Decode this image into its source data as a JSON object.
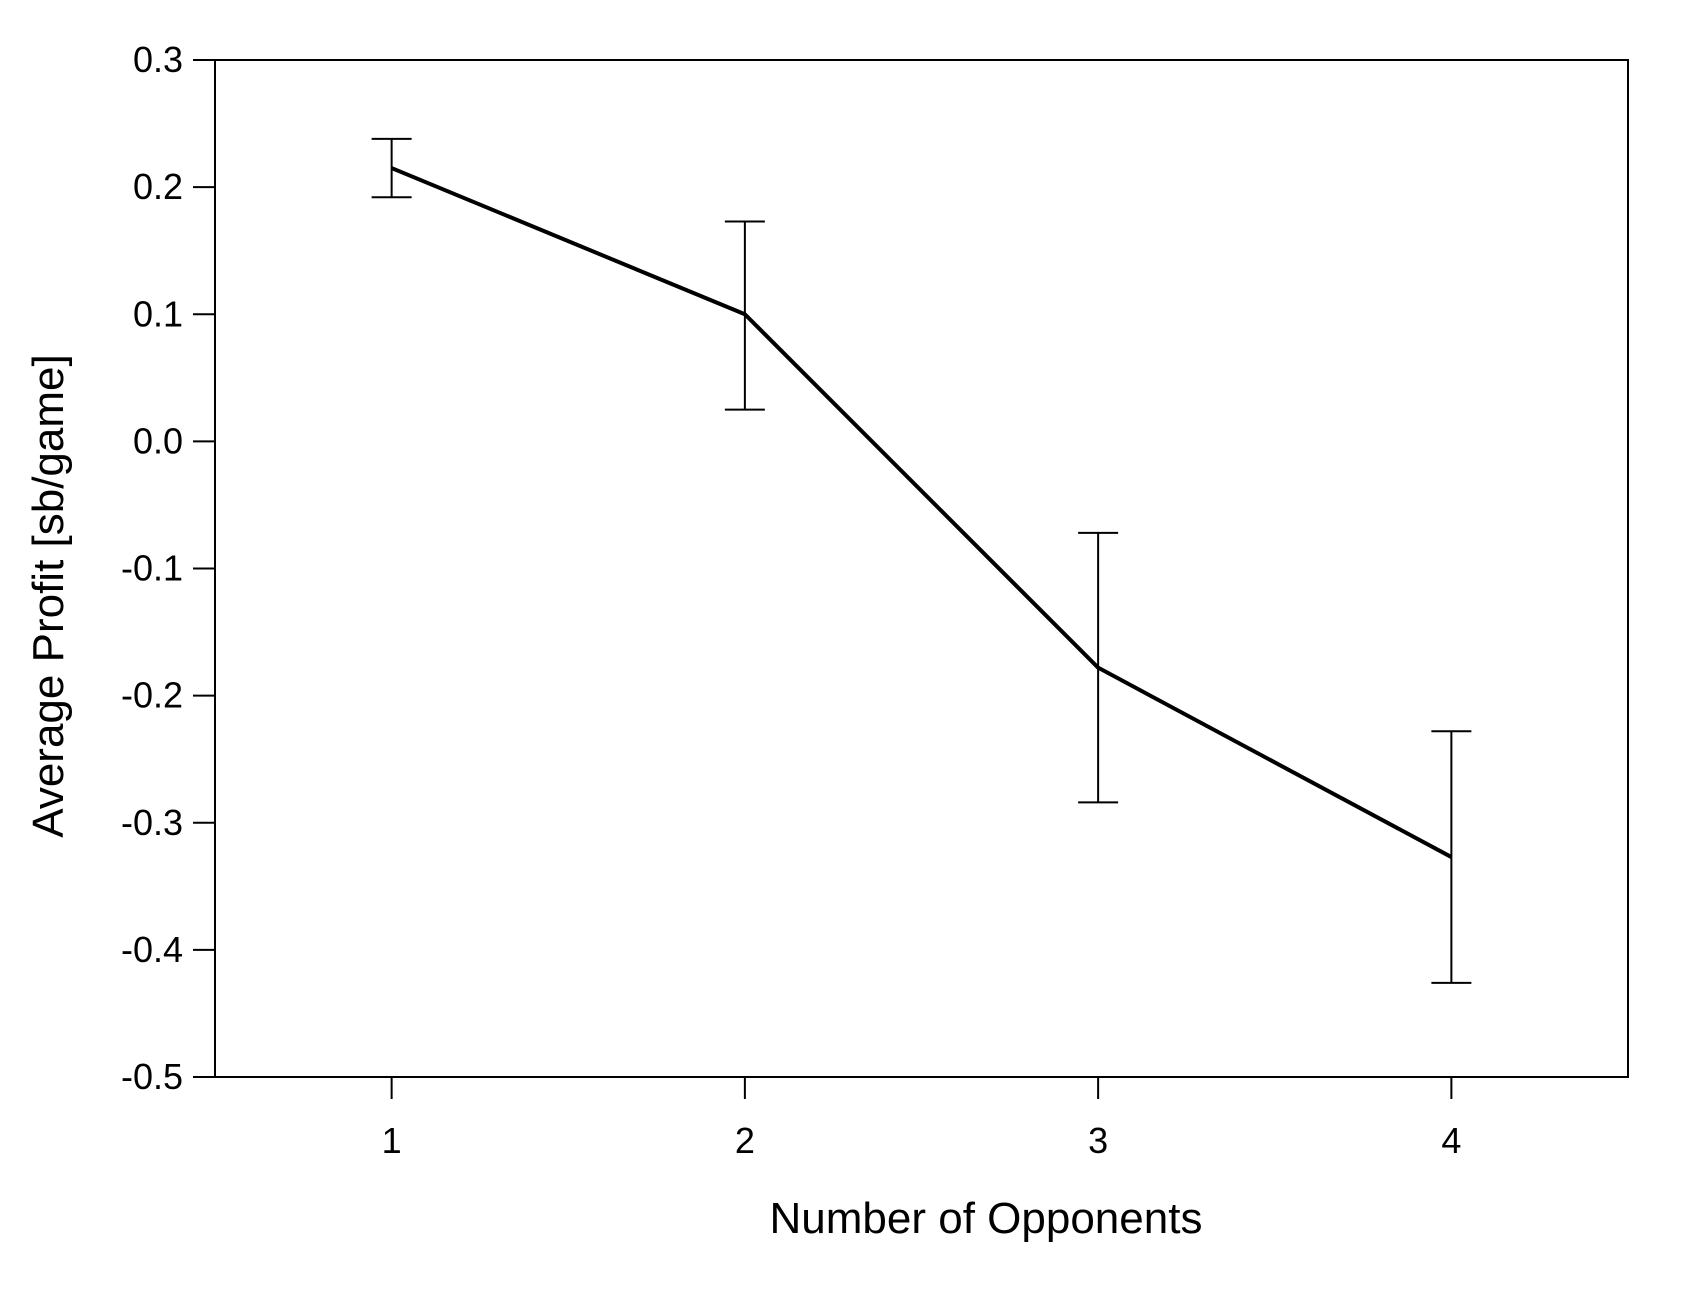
{
  "chart_data": {
    "type": "line",
    "title": "",
    "xlabel": "Number of Opponents",
    "ylabel": "Average Profit [sb/game]",
    "xlim": [
      0.5,
      4.5
    ],
    "ylim": [
      -0.5,
      0.3
    ],
    "x_ticks": [
      1,
      2,
      3,
      4
    ],
    "x_tick_labels": [
      "1",
      "2",
      "3",
      "4"
    ],
    "y_ticks": [
      0.3,
      0.2,
      0.1,
      0.0,
      -0.1,
      -0.2,
      -0.3,
      -0.4,
      -0.5
    ],
    "y_tick_labels": [
      "0.3",
      "0.2",
      "0.1",
      "0.0",
      "-0.1",
      "-0.2",
      "-0.3",
      "-0.4",
      "-0.5"
    ],
    "grid": false,
    "legend": "none",
    "series": [
      {
        "x": [
          1,
          2,
          3,
          4
        ],
        "y": [
          0.215,
          0.1,
          -0.178,
          -0.327
        ],
        "error_low": [
          0.192,
          0.025,
          -0.284,
          -0.426
        ],
        "error_high": [
          0.238,
          0.173,
          -0.072,
          -0.228
        ],
        "color": "#000000"
      }
    ]
  }
}
